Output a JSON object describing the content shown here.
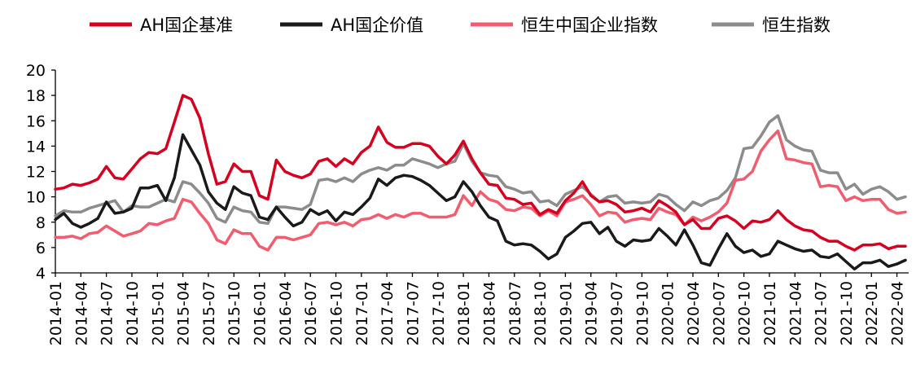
{
  "chart_data": {
    "type": "line",
    "title": "",
    "xlabel": "",
    "ylabel": "",
    "ylim": [
      4,
      20
    ],
    "yticks": [
      4,
      6,
      8,
      10,
      12,
      14,
      16,
      18,
      20
    ],
    "grid": false,
    "legend_position": "top",
    "x": [
      "2014-01",
      "2014-02",
      "2014-03",
      "2014-04",
      "2014-05",
      "2014-06",
      "2014-07",
      "2014-08",
      "2014-09",
      "2014-10",
      "2014-11",
      "2014-12",
      "2015-01",
      "2015-02",
      "2015-03",
      "2015-04",
      "2015-05",
      "2015-06",
      "2015-07",
      "2015-08",
      "2015-09",
      "2015-10",
      "2015-11",
      "2015-12",
      "2016-01",
      "2016-02",
      "2016-03",
      "2016-04",
      "2016-05",
      "2016-06",
      "2016-07",
      "2016-08",
      "2016-09",
      "2016-10",
      "2016-11",
      "2016-12",
      "2017-01",
      "2017-02",
      "2017-03",
      "2017-04",
      "2017-05",
      "2017-06",
      "2017-07",
      "2017-08",
      "2017-09",
      "2017-10",
      "2017-11",
      "2017-12",
      "2018-01",
      "2018-02",
      "2018-03",
      "2018-04",
      "2018-05",
      "2018-06",
      "2018-07",
      "2018-08",
      "2018-09",
      "2018-10",
      "2018-11",
      "2018-12",
      "2019-01",
      "2019-02",
      "2019-03",
      "2019-04",
      "2019-05",
      "2019-06",
      "2019-07",
      "2019-08",
      "2019-09",
      "2019-10",
      "2019-11",
      "2019-12",
      "2020-01",
      "2020-02",
      "2020-03",
      "2020-04",
      "2020-05",
      "2020-06",
      "2020-07",
      "2020-08",
      "2020-09",
      "2020-10",
      "2020-11",
      "2020-12",
      "2021-01",
      "2021-02",
      "2021-03",
      "2021-04",
      "2021-05",
      "2021-06",
      "2021-07",
      "2021-08",
      "2021-09",
      "2021-10",
      "2021-11",
      "2021-12",
      "2022-01",
      "2022-02",
      "2022-03",
      "2022-04",
      "2022-05"
    ],
    "xtick_labels": [
      "2014-01",
      "2014-04",
      "2014-07",
      "2014-10",
      "2015-01",
      "2015-04",
      "2015-07",
      "2015-10",
      "2016-01",
      "2016-04",
      "2016-07",
      "2016-10",
      "2017-01",
      "2017-04",
      "2017-07",
      "2017-10",
      "2018-01",
      "2018-04",
      "2018-07",
      "2018-10",
      "2019-01",
      "2019-04",
      "2019-07",
      "2019-10",
      "2020-01",
      "2020-04",
      "2020-07",
      "2020-10",
      "2021-01",
      "2021-04",
      "2021-07",
      "2021-10",
      "2022-01",
      "2022-04"
    ],
    "series": [
      {
        "name": "AH国企基准",
        "color": "#d7001e",
        "values": [
          10.6,
          10.7,
          11.0,
          10.9,
          11.1,
          11.4,
          12.4,
          11.5,
          11.4,
          12.2,
          13.0,
          13.5,
          13.4,
          13.8,
          15.9,
          18.0,
          17.7,
          16.2,
          13.4,
          11.0,
          11.2,
          12.6,
          12.0,
          12.0,
          10.1,
          9.8,
          12.9,
          12.0,
          11.7,
          11.5,
          11.8,
          12.8,
          13.0,
          12.4,
          13.0,
          12.6,
          13.5,
          14.0,
          15.5,
          14.3,
          13.9,
          13.9,
          14.2,
          14.2,
          14.0,
          13.2,
          12.6,
          13.3,
          14.4,
          13.0,
          11.9,
          11.0,
          10.9,
          9.9,
          9.8,
          9.4,
          9.5,
          8.6,
          9.0,
          8.7,
          9.7,
          10.3,
          11.2,
          10.1,
          9.6,
          9.7,
          9.4,
          8.8,
          8.9,
          9.1,
          8.8,
          9.7,
          9.3,
          8.8,
          7.8,
          8.2,
          7.5,
          7.5,
          8.3,
          8.5,
          8.1,
          7.5,
          8.1,
          8.0,
          8.2,
          8.9,
          8.2,
          7.7,
          7.4,
          7.3,
          6.8,
          6.5,
          6.5,
          6.1,
          5.8,
          6.2,
          6.2,
          6.3,
          5.9,
          6.1,
          6.1
        ]
      },
      {
        "name": "AH国企价值",
        "color": "#1a1a1a",
        "values": [
          8.2,
          8.7,
          7.9,
          7.6,
          7.9,
          8.3,
          9.6,
          8.7,
          8.8,
          9.1,
          10.7,
          10.7,
          10.9,
          9.7,
          11.5,
          14.9,
          13.7,
          12.5,
          10.4,
          9.5,
          9.0,
          10.8,
          10.3,
          10.1,
          8.4,
          8.2,
          9.2,
          8.4,
          7.7,
          8.0,
          9.0,
          8.6,
          8.9,
          8.1,
          8.8,
          8.6,
          9.2,
          9.9,
          11.4,
          10.9,
          11.5,
          11.7,
          11.6,
          11.3,
          10.9,
          10.3,
          9.7,
          10.0,
          11.2,
          10.4,
          9.3,
          8.4,
          8.1,
          6.5,
          6.2,
          6.3,
          6.2,
          5.7,
          5.1,
          5.5,
          6.8,
          7.3,
          7.9,
          8.0,
          7.1,
          7.6,
          6.5,
          6.1,
          6.6,
          6.5,
          6.6,
          7.5,
          6.9,
          6.2,
          7.4,
          6.2,
          4.8,
          4.6,
          5.9,
          7.1,
          6.1,
          5.6,
          5.8,
          5.3,
          5.5,
          6.5,
          6.2,
          5.9,
          5.7,
          5.8,
          5.3,
          5.2,
          5.5,
          4.9,
          4.3,
          4.8,
          4.8,
          5.0,
          4.5,
          4.7,
          5.0
        ]
      },
      {
        "name": "恒生中国企业指数",
        "color": "#f25c6e",
        "values": [
          6.8,
          6.8,
          6.9,
          6.7,
          7.1,
          7.2,
          7.7,
          7.3,
          6.9,
          7.1,
          7.3,
          7.9,
          7.8,
          8.1,
          8.3,
          9.8,
          9.6,
          8.7,
          7.9,
          6.6,
          6.3,
          7.4,
          7.1,
          7.1,
          6.1,
          5.8,
          6.8,
          6.8,
          6.6,
          6.8,
          7.0,
          7.9,
          8.0,
          7.8,
          8.0,
          7.7,
          8.2,
          8.3,
          8.6,
          8.3,
          8.6,
          8.4,
          8.7,
          8.7,
          8.4,
          8.4,
          8.4,
          8.6,
          10.1,
          9.3,
          10.4,
          9.8,
          9.6,
          9.0,
          8.9,
          9.2,
          9.1,
          8.5,
          8.9,
          8.5,
          9.6,
          9.8,
          10.1,
          9.4,
          8.5,
          8.8,
          8.7,
          8.0,
          8.2,
          8.3,
          8.2,
          9.1,
          8.8,
          8.6,
          7.8,
          8.4,
          8.1,
          8.4,
          8.8,
          9.5,
          11.3,
          11.4,
          12.0,
          13.6,
          14.5,
          15.2,
          13.0,
          12.9,
          12.7,
          12.6,
          10.8,
          10.9,
          10.8,
          9.7,
          10.0,
          9.7,
          9.8,
          9.8,
          9.0,
          8.7,
          8.8
        ]
      },
      {
        "name": "恒生指数",
        "color": "#8c8c8c",
        "values": [
          8.5,
          8.9,
          8.8,
          8.8,
          9.1,
          9.3,
          9.5,
          9.7,
          8.8,
          9.3,
          9.2,
          9.2,
          9.5,
          9.8,
          9.6,
          11.2,
          11.0,
          10.3,
          9.5,
          8.3,
          8.0,
          9.2,
          8.9,
          8.8,
          8.0,
          7.9,
          9.2,
          9.2,
          9.1,
          9.0,
          9.4,
          11.3,
          11.4,
          11.2,
          11.5,
          11.2,
          11.8,
          12.1,
          12.3,
          12.1,
          12.5,
          12.5,
          13.0,
          12.8,
          12.6,
          12.3,
          12.6,
          12.8,
          14.2,
          12.8,
          11.9,
          11.7,
          11.6,
          10.8,
          10.6,
          10.3,
          10.4,
          9.6,
          9.7,
          9.3,
          10.2,
          10.5,
          10.8,
          10.2,
          9.6,
          10.0,
          10.1,
          9.5,
          9.6,
          9.5,
          9.6,
          10.2,
          10.0,
          9.4,
          8.9,
          9.6,
          9.3,
          9.7,
          9.9,
          10.5,
          11.5,
          13.8,
          13.9,
          14.8,
          15.9,
          16.4,
          14.5,
          14.0,
          13.7,
          13.6,
          12.1,
          11.9,
          11.9,
          10.6,
          11.0,
          10.2,
          10.6,
          10.8,
          10.4,
          9.8,
          10.0
        ]
      }
    ]
  }
}
